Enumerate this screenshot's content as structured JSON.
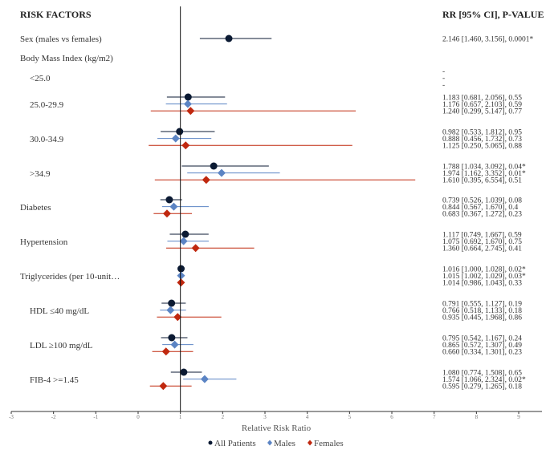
{
  "chart_data": {
    "type": "forest",
    "left_header": "RISK FACTORS",
    "right_header": "RR [95% CI], P-VALUE",
    "xlabel": "Relative Risk Ratio",
    "xlim": [
      -3,
      9.5
    ],
    "xticks": [
      "-3",
      "-2",
      "-1",
      "0",
      "1",
      "2",
      "3",
      "4",
      "5",
      "6",
      "7",
      "8",
      "9"
    ],
    "reference_line": 1,
    "legend": [
      {
        "name": "All Patients",
        "color": "#0b1a33",
        "marker": "circle"
      },
      {
        "name": "Males",
        "color": "#5b84c4",
        "marker": "diamond"
      },
      {
        "name": "Females",
        "color": "#c0280f",
        "marker": "diamond"
      }
    ],
    "rows": [
      {
        "label": "Sex (males vs females)",
        "indent": false,
        "estimates": [
          {
            "series": 0,
            "rr": 2.146,
            "lo": 1.46,
            "hi": 3.156,
            "text": "2.146 [1.460, 3.156], 0.0001*"
          }
        ]
      },
      {
        "label": "Body Mass Index (kg/m2)",
        "indent": false,
        "estimates": []
      },
      {
        "label": "<25.0",
        "indent": true,
        "estimates": [
          {
            "series": 0,
            "rr": null,
            "text": "-"
          },
          {
            "series": 1,
            "rr": null,
            "text": "-"
          },
          {
            "series": 2,
            "rr": null,
            "text": "-"
          }
        ]
      },
      {
        "label": "25.0-29.9",
        "indent": true,
        "estimates": [
          {
            "series": 0,
            "rr": 1.183,
            "lo": 0.681,
            "hi": 2.056,
            "text": "1.183 [0.681, 2.056], 0.55"
          },
          {
            "series": 1,
            "rr": 1.176,
            "lo": 0.657,
            "hi": 2.103,
            "text": "1.176 [0.657, 2.103], 0.59"
          },
          {
            "series": 2,
            "rr": 1.24,
            "lo": 0.299,
            "hi": 5.147,
            "text": "1.240 [0.299, 5.147], 0.77"
          }
        ]
      },
      {
        "label": "30.0-34.9",
        "indent": true,
        "estimates": [
          {
            "series": 0,
            "rr": 0.982,
            "lo": 0.533,
            "hi": 1.812,
            "text": "0.982 [0.533, 1.812], 0.95"
          },
          {
            "series": 1,
            "rr": 0.888,
            "lo": 0.456,
            "hi": 1.732,
            "text": "0.888 [0.456, 1.732], 0.73"
          },
          {
            "series": 2,
            "rr": 1.125,
            "lo": 0.25,
            "hi": 5.065,
            "text": "1.125 [0.250, 5.065], 0.88"
          }
        ]
      },
      {
        "label": ">34.9",
        "indent": true,
        "estimates": [
          {
            "series": 0,
            "rr": 1.788,
            "lo": 1.034,
            "hi": 3.092,
            "text": "1.788 [1.034, 3.092], 0.04*"
          },
          {
            "series": 1,
            "rr": 1.974,
            "lo": 1.162,
            "hi": 3.352,
            "text": "1.974 [1.162, 3.352], 0.01*"
          },
          {
            "series": 2,
            "rr": 1.61,
            "lo": 0.395,
            "hi": 6.554,
            "text": "1.610 [0.395, 6.554], 0.51"
          }
        ]
      },
      {
        "label": "Diabetes",
        "indent": false,
        "estimates": [
          {
            "series": 0,
            "rr": 0.739,
            "lo": 0.526,
            "hi": 1.039,
            "text": "0.739 [0.526, 1.039], 0.08"
          },
          {
            "series": 1,
            "rr": 0.844,
            "lo": 0.567,
            "hi": 1.67,
            "text": "0.844 [0.567, 1.670], 0.4"
          },
          {
            "series": 2,
            "rr": 0.683,
            "lo": 0.367,
            "hi": 1.272,
            "text": "0.683 [0.367, 1.272], 0.23"
          }
        ]
      },
      {
        "label": "Hypertension",
        "indent": false,
        "estimates": [
          {
            "series": 0,
            "rr": 1.117,
            "lo": 0.749,
            "hi": 1.667,
            "text": "1.117 [0.749, 1.667], 0.59"
          },
          {
            "series": 1,
            "rr": 1.075,
            "lo": 0.692,
            "hi": 1.67,
            "text": "1.075 [0.692, 1.670], 0.75"
          },
          {
            "series": 2,
            "rr": 1.36,
            "lo": 0.664,
            "hi": 2.745,
            "text": "1.360 [0.664, 2.745], 0.41"
          }
        ]
      },
      {
        "label": "Triglycerides (per 10-unit…",
        "indent": false,
        "estimates": [
          {
            "series": 0,
            "rr": 1.016,
            "lo": 1.0,
            "hi": 1.028,
            "text": "1.016 [1.000, 1.028], 0.02*"
          },
          {
            "series": 1,
            "rr": 1.015,
            "lo": 1.002,
            "hi": 1.029,
            "text": "1.015 [1.002, 1.029], 0.03*"
          },
          {
            "series": 2,
            "rr": 1.014,
            "lo": 0.986,
            "hi": 1.043,
            "text": "1.014 [0.986, 1.043], 0.33"
          }
        ]
      },
      {
        "label": "HDL ≤40 mg/dL",
        "indent": true,
        "estimates": [
          {
            "series": 0,
            "rr": 0.791,
            "lo": 0.555,
            "hi": 1.127,
            "text": "0.791 [0.555, 1.127], 0.19"
          },
          {
            "series": 1,
            "rr": 0.766,
            "lo": 0.518,
            "hi": 1.133,
            "text": "0.766 [0.518, 1.133], 0.18"
          },
          {
            "series": 2,
            "rr": 0.935,
            "lo": 0.445,
            "hi": 1.968,
            "text": "0.935 [0.445, 1.968], 0.86"
          }
        ]
      },
      {
        "label": "LDL ≥100 mg/dL",
        "indent": true,
        "estimates": [
          {
            "series": 0,
            "rr": 0.795,
            "lo": 0.542,
            "hi": 1.167,
            "text": "0.795 [0.542, 1.167], 0.24"
          },
          {
            "series": 1,
            "rr": 0.865,
            "lo": 0.572,
            "hi": 1.307,
            "text": "0.865 [0.572, 1.307], 0.49"
          },
          {
            "series": 2,
            "rr": 0.66,
            "lo": 0.334,
            "hi": 1.301,
            "text": "0.660 [0.334, 1.301], 0.23"
          }
        ]
      },
      {
        "label": "FIB-4 >=1.45",
        "indent": true,
        "estimates": [
          {
            "series": 0,
            "rr": 1.08,
            "lo": 0.774,
            "hi": 1.508,
            "text": "1.080 [0.774, 1.508], 0.65"
          },
          {
            "series": 1,
            "rr": 1.574,
            "lo": 1.066,
            "hi": 2.324,
            "text": "1.574 [1.066, 2.324], 0.02*"
          },
          {
            "series": 2,
            "rr": 0.595,
            "lo": 0.279,
            "hi": 1.265,
            "text": "0.595 [0.279, 1.265], 0.18"
          }
        ]
      }
    ]
  }
}
